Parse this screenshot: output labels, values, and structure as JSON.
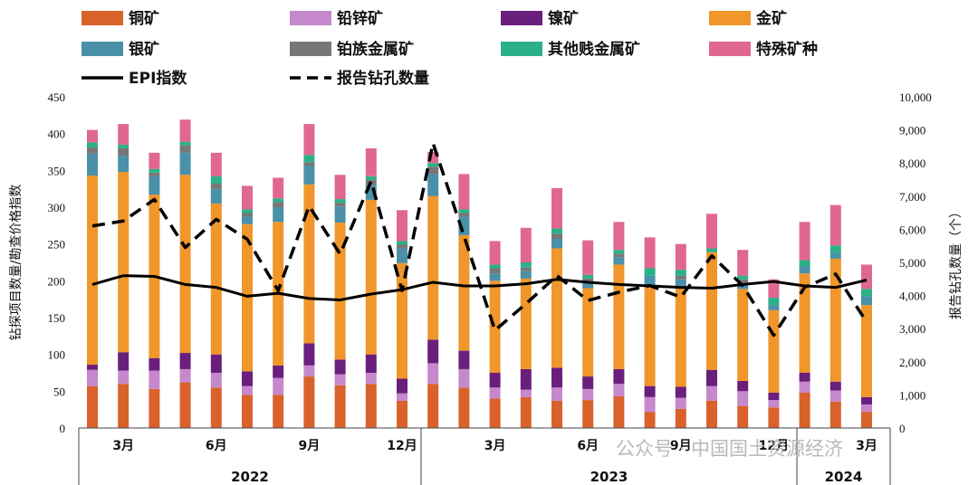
{
  "chart_data": {
    "type": "bar",
    "stacked": true,
    "months": [
      "2022-01",
      "2022-02",
      "2022-03",
      "2022-04",
      "2022-05",
      "2022-06",
      "2022-07",
      "2022-08",
      "2022-09",
      "2022-10",
      "2022-11",
      "2022-12",
      "2023-01",
      "2023-02",
      "2023-03",
      "2023-04",
      "2023-05",
      "2023-06",
      "2023-07",
      "2023-08",
      "2023-09",
      "2023-10",
      "2023-11",
      "2023-12",
      "2024-01",
      "2024-02",
      "2024-03"
    ],
    "x_tick_labels": [
      {
        "index": 1,
        "label": "3月"
      },
      {
        "index": 4,
        "label": "6月"
      },
      {
        "index": 7,
        "label": "9月"
      },
      {
        "index": 10,
        "label": "12月"
      },
      {
        "index": 13,
        "label": "3月"
      },
      {
        "index": 16,
        "label": "6月"
      },
      {
        "index": 19,
        "label": "9月"
      },
      {
        "index": 22,
        "label": "12月"
      },
      {
        "index": 25,
        "label": "3月"
      }
    ],
    "year_groups": [
      {
        "label": "2022",
        "start": 0,
        "end": 10
      },
      {
        "label": "2023",
        "start": 11,
        "end": 22
      },
      {
        "label": "2024",
        "start": 23,
        "end": 26
      }
    ],
    "y_left": {
      "label": "钻探项目数量/勘查价格指数",
      "range": [
        0,
        450
      ],
      "ticks": [
        "0",
        "50",
        "100",
        "150",
        "200",
        "250",
        "300",
        "350",
        "400",
        "450"
      ]
    },
    "y_right": {
      "label": "报告钻孔数量（个）",
      "range": [
        0,
        10000
      ],
      "ticks": [
        "0",
        "1,000",
        "2,000",
        "3,000",
        "4,000",
        "5,000",
        "6,000",
        "7,000",
        "8,000",
        "9,000",
        "10,000"
      ]
    },
    "legend": [
      "铜矿",
      "铅锌矿",
      "镍矿",
      "金矿",
      "银矿",
      "铂族金属矿",
      "其他贱金属矿",
      "特殊矿种",
      "EPI指数",
      "报告钻孔数量"
    ],
    "series": [
      {
        "name": "铜矿",
        "color": "#d9622b",
        "values": [
          57,
          60,
          53,
          62,
          55,
          45,
          45,
          70,
          58,
          60,
          37,
          60,
          55,
          40,
          42,
          37,
          38,
          43,
          22,
          26,
          37,
          30,
          28,
          48,
          36,
          22,
          0
        ]
      },
      {
        "name": "铅锌矿",
        "color": "#c688cc",
        "values": [
          22,
          18,
          25,
          18,
          20,
          12,
          23,
          15,
          15,
          15,
          10,
          28,
          25,
          15,
          10,
          18,
          15,
          17,
          20,
          15,
          20,
          20,
          10,
          15,
          15,
          10,
          0
        ]
      },
      {
        "name": "镍矿",
        "color": "#6a1f7c",
        "values": [
          7,
          25,
          17,
          22,
          25,
          20,
          17,
          30,
          20,
          25,
          20,
          32,
          25,
          20,
          28,
          27,
          17,
          20,
          15,
          15,
          22,
          14,
          10,
          12,
          12,
          10,
          0
        ]
      },
      {
        "name": "金矿",
        "color": "#f0962a",
        "values": [
          257,
          245,
          222,
          242,
          205,
          200,
          195,
          216,
          186,
          210,
          157,
          195,
          157,
          125,
          123,
          162,
          120,
          142,
          135,
          134,
          160,
          125,
          112,
          135,
          167,
          125,
          0
        ]
      },
      {
        "name": "银矿",
        "color": "#4a90a8",
        "values": [
          30,
          22,
          25,
          30,
          20,
          10,
          20,
          25,
          22,
          20,
          20,
          30,
          25,
          10,
          10,
          13,
          8,
          10,
          15,
          12,
          0,
          8,
          7,
          10,
          8,
          12,
          0
        ]
      },
      {
        "name": "铂族金属矿",
        "color": "#777777",
        "values": [
          8,
          10,
          5,
          10,
          7,
          5,
          7,
          5,
          5,
          7,
          5,
          10,
          5,
          7,
          5,
          7,
          5,
          5,
          0,
          5,
          0,
          5,
          0,
          0,
          0,
          0,
          0
        ]
      },
      {
        "name": "其他贱金属矿",
        "color": "#2bb08a",
        "values": [
          7,
          5,
          5,
          5,
          10,
          5,
          5,
          10,
          5,
          5,
          5,
          5,
          5,
          5,
          7,
          7,
          5,
          5,
          10,
          8,
          5,
          5,
          10,
          8,
          10,
          10,
          0
        ]
      },
      {
        "name": "特殊矿种",
        "color": "#e0688e",
        "values": [
          17,
          28,
          22,
          30,
          32,
          32,
          28,
          42,
          33,
          38,
          42,
          15,
          48,
          32,
          47,
          55,
          47,
          38,
          42,
          35,
          47,
          35,
          25,
          52,
          55,
          33,
          0
        ]
      }
    ],
    "epi_index": {
      "name": "EPI指数",
      "axis": "left",
      "values": [
        195,
        207,
        206,
        195,
        191,
        179,
        183,
        176,
        174,
        182,
        188,
        198,
        193,
        193,
        196,
        202,
        198,
        195,
        193,
        191,
        190,
        195,
        199,
        193,
        191,
        201,
        0
      ]
    },
    "drill_holes": {
      "name": "报告钻孔数量",
      "axis": "right",
      "values": [
        6100,
        6250,
        6900,
        5450,
        6300,
        5700,
        4150,
        6700,
        5250,
        7450,
        4150,
        8600,
        5800,
        2950,
        3750,
        4600,
        3850,
        4100,
        4300,
        3950,
        5200,
        4300,
        2800,
        4250,
        4650,
        3200,
        0
      ]
    },
    "grid": false,
    "legend_position": "top"
  },
  "watermark": "公众号 · 中国国土资源经济"
}
